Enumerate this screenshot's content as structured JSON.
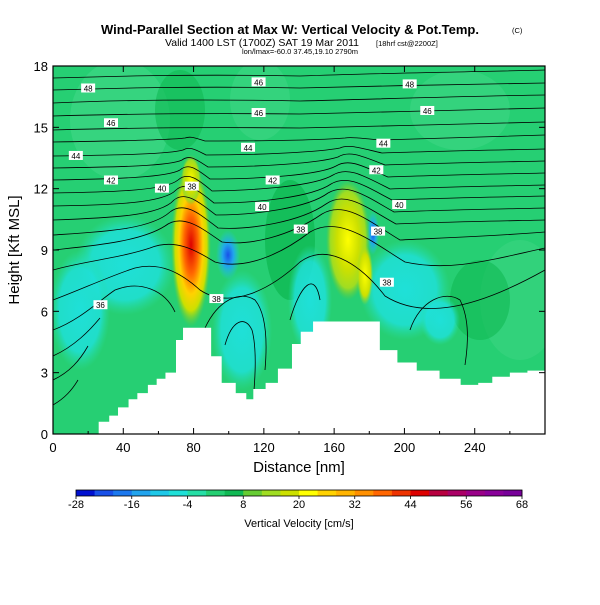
{
  "title": "Wind-Parallel Section at Max W: Vertical Velocity & Pot.Temp.",
  "copyright": "(C)",
  "subtitle": "Valid 1400 LST (1700Z) SAT 19 Mar 2011",
  "subtitle_tail": "[18hrf cst@2200Z]",
  "small_note": "lon/lmax=-60.0 37.45,19.10 2790m",
  "chart_data": {
    "type": "heatmap",
    "title": "Wind-Parallel Section at Max W: Vertical Velocity & Pot.Temp.",
    "xlabel": "Distance [nm]",
    "ylabel": "Height [Kft MSL]",
    "xlim": [
      0,
      280
    ],
    "ylim": [
      0,
      18
    ],
    "x_ticks": [
      "0",
      "40",
      "80",
      "120",
      "160",
      "200",
      "240"
    ],
    "y_ticks": [
      "0",
      "3",
      "6",
      "9",
      "12",
      "15",
      "18"
    ],
    "x_tick_values": [
      0,
      40,
      80,
      120,
      160,
      200,
      240
    ],
    "y_tick_values": [
      0,
      3,
      6,
      9,
      12,
      15,
      18
    ],
    "colorbar": {
      "label": "Vertical Velocity [cm/s]",
      "min": -28,
      "max": 68,
      "step": 4,
      "tick_labels": [
        "-28",
        "-16",
        "-4",
        "8",
        "20",
        "32",
        "44",
        "56",
        "68"
      ],
      "tick_values": [
        -28,
        -16,
        -4,
        8,
        20,
        32,
        44,
        56,
        68
      ],
      "colors": [
        "#0010d0",
        "#1850e8",
        "#1b78ee",
        "#21a4ee",
        "#1ec8e8",
        "#1fe0d8",
        "#26dfa6",
        "#24cf72",
        "#10b954",
        "#66cc33",
        "#a0dd22",
        "#cce000",
        "#ffff00",
        "#ffd200",
        "#ffb400",
        "#ff9000",
        "#ff6600",
        "#ee3300",
        "#dd0000",
        "#b80040",
        "#aa0066",
        "#990088",
        "#880099",
        "#770099"
      ]
    },
    "isentrope_labels": [
      {
        "text": "48",
        "x": 20,
        "y": 16.9
      },
      {
        "text": "46",
        "x": 117,
        "y": 17.2
      },
      {
        "text": "48",
        "x": 203,
        "y": 17.1
      },
      {
        "text": "46",
        "x": 33,
        "y": 15.2
      },
      {
        "text": "46",
        "x": 117,
        "y": 15.7
      },
      {
        "text": "46",
        "x": 213,
        "y": 15.8
      },
      {
        "text": "44",
        "x": 13,
        "y": 13.6
      },
      {
        "text": "44",
        "x": 111,
        "y": 14.0
      },
      {
        "text": "44",
        "x": 188,
        "y": 14.2
      },
      {
        "text": "42",
        "x": 33,
        "y": 12.4
      },
      {
        "text": "42",
        "x": 125,
        "y": 12.4
      },
      {
        "text": "42",
        "x": 184,
        "y": 12.9
      },
      {
        "text": "40",
        "x": 62,
        "y": 12.0
      },
      {
        "text": "40",
        "x": 119,
        "y": 11.1
      },
      {
        "text": "40",
        "x": 197,
        "y": 11.2
      },
      {
        "text": "38",
        "x": 79,
        "y": 12.1
      },
      {
        "text": "38",
        "x": 141,
        "y": 10.0
      },
      {
        "text": "38",
        "x": 185,
        "y": 9.9
      },
      {
        "text": "38",
        "x": 93,
        "y": 6.6
      },
      {
        "text": "38",
        "x": 190,
        "y": 7.4
      },
      {
        "text": "36",
        "x": 27,
        "y": 6.3
      }
    ],
    "terrain": {
      "x": [
        0,
        20,
        26,
        32,
        37,
        43,
        48,
        54,
        59,
        64,
        70,
        74,
        87,
        90,
        96,
        104,
        110,
        114,
        121,
        128,
        136,
        141,
        148,
        182,
        186,
        196,
        207,
        220,
        232,
        242,
        250,
        260,
        270,
        280
      ],
      "height": [
        0,
        0,
        0.6,
        0.9,
        1.3,
        1.7,
        2.0,
        2.4,
        2.7,
        3.0,
        4.6,
        5.2,
        5.2,
        3.8,
        2.5,
        2.0,
        1.7,
        2.2,
        2.5,
        3.2,
        4.4,
        5.0,
        5.5,
        5.5,
        4.1,
        3.5,
        3.1,
        2.7,
        2.4,
        2.5,
        2.8,
        3.0,
        3.1,
        3.1
      ]
    }
  }
}
